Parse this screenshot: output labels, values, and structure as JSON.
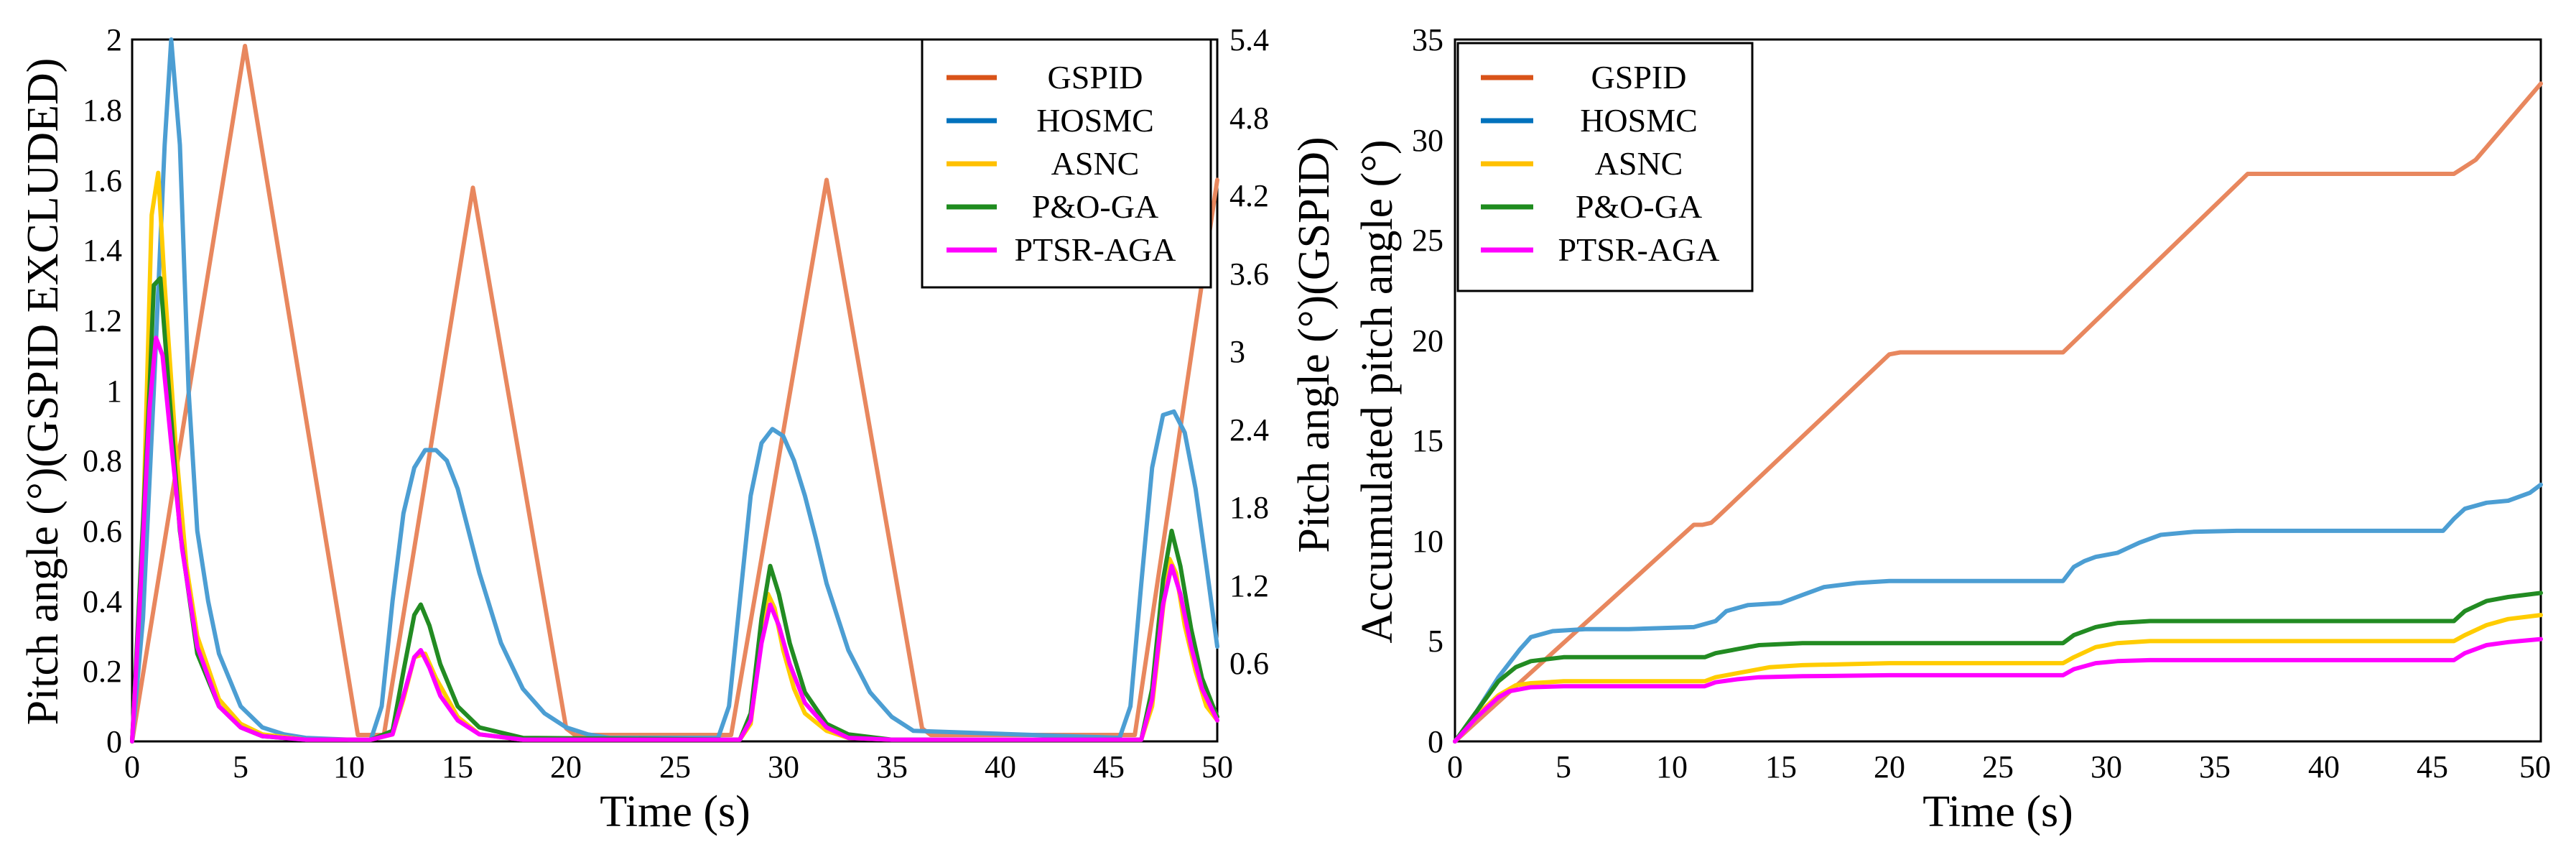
{
  "chart_data": [
    {
      "type": "line",
      "xlabel": "Time (s)",
      "ylabel": "Pitch angle (°)(GSPID EXCLUDED)",
      "ylabel_right": "Pitch angle (°)(GSPID)",
      "xlim": [
        0,
        50
      ],
      "ylim": [
        0,
        2
      ],
      "ylim_right": [
        0,
        5.4
      ],
      "xticks": [
        "0",
        "5",
        "10",
        "15",
        "20",
        "25",
        "30",
        "35",
        "40",
        "45",
        "50"
      ],
      "yticks": [
        "0",
        "0.2",
        "0.4",
        "0.6",
        "0.8",
        "1",
        "1.2",
        "1.4",
        "1.6",
        "1.8",
        "2"
      ],
      "yticks_right": [
        "0.6",
        "1.2",
        "1.8",
        "2.4",
        "3",
        "3.6",
        "4.2",
        "4.8",
        "5.4"
      ],
      "legend_position": "top-right",
      "series": [
        {
          "name": "GSPID",
          "color": "#E8875E",
          "legend_color": "#D95319",
          "axis": "right",
          "x": [
            0,
            5.2,
            10.4,
            11.6,
            15.7,
            20.0,
            20.4,
            27.3,
            27.6,
            32.0,
            36.4,
            36.8,
            45.8,
            46.2,
            50
          ],
          "y": [
            0,
            5.35,
            0.05,
            0.05,
            4.26,
            0.1,
            0.05,
            0.05,
            0.05,
            4.32,
            0.1,
            0.05,
            0.05,
            0.05,
            4.32
          ]
        },
        {
          "name": "HOSMC",
          "color": "#4C9ED3",
          "legend_color": "#0072BD",
          "axis": "left",
          "x": [
            0,
            0.5,
            1.0,
            1.5,
            1.8,
            2.2,
            2.6,
            3.0,
            3.5,
            4.0,
            5.0,
            6.0,
            7.0,
            8.0,
            10.0,
            11.0,
            11.5,
            12.0,
            12.5,
            13.0,
            13.5,
            14.0,
            14.5,
            15.0,
            15.5,
            16.0,
            17.0,
            18.0,
            19.0,
            20.0,
            21.0,
            22.0,
            27.0,
            27.5,
            28.0,
            28.5,
            29.0,
            29.5,
            30.0,
            30.5,
            31.0,
            31.5,
            32.0,
            33.0,
            34.0,
            35.0,
            36.0,
            45.5,
            46.0,
            46.5,
            47.0,
            47.5,
            48.0,
            48.5,
            49.0,
            49.5,
            50.0
          ],
          "y": [
            0,
            0.35,
            1.0,
            1.7,
            2.0,
            1.7,
            1.0,
            0.6,
            0.4,
            0.25,
            0.1,
            0.04,
            0.02,
            0.01,
            0.005,
            0.005,
            0.1,
            0.4,
            0.65,
            0.78,
            0.83,
            0.83,
            0.8,
            0.72,
            0.6,
            0.48,
            0.28,
            0.15,
            0.08,
            0.04,
            0.02,
            0.01,
            0.01,
            0.1,
            0.4,
            0.7,
            0.85,
            0.89,
            0.87,
            0.8,
            0.7,
            0.58,
            0.45,
            0.26,
            0.14,
            0.07,
            0.03,
            0.01,
            0.1,
            0.45,
            0.78,
            0.93,
            0.94,
            0.88,
            0.72,
            0.5,
            0.27
          ]
        },
        {
          "name": "ASNC",
          "color": "#FFCC00",
          "legend_color": "#FFC000",
          "axis": "left",
          "x": [
            0,
            0.5,
            0.9,
            1.2,
            1.5,
            2.0,
            2.5,
            3.0,
            4.0,
            5.0,
            6.0,
            8.0,
            11.0,
            12.0,
            12.5,
            13.0,
            13.5,
            14.0,
            15.0,
            16.0,
            18.0,
            28.0,
            28.5,
            29.0,
            29.3,
            29.6,
            30.0,
            30.5,
            31.0,
            32.0,
            33.0,
            35.0,
            46.5,
            47.0,
            47.5,
            47.8,
            48.1,
            48.5,
            49.0,
            49.5,
            50.0
          ],
          "y": [
            0,
            0.6,
            1.5,
            1.62,
            1.3,
            0.85,
            0.5,
            0.3,
            0.12,
            0.05,
            0.02,
            0.005,
            0.005,
            0.02,
            0.12,
            0.24,
            0.25,
            0.18,
            0.07,
            0.02,
            0.005,
            0.005,
            0.05,
            0.3,
            0.42,
            0.38,
            0.26,
            0.15,
            0.08,
            0.03,
            0.01,
            0.005,
            0.005,
            0.1,
            0.38,
            0.52,
            0.48,
            0.33,
            0.2,
            0.1,
            0.06
          ]
        },
        {
          "name": "P&O-GA",
          "color": "#228B22",
          "legend_color": "#1E8C1E",
          "axis": "left",
          "x": [
            0,
            0.4,
            0.8,
            1.0,
            1.3,
            1.7,
            2.2,
            3.0,
            4.0,
            5.0,
            6.0,
            8.0,
            11.0,
            12.0,
            12.5,
            13.0,
            13.3,
            13.7,
            14.2,
            15.0,
            16.0,
            18.0,
            28.0,
            28.5,
            29.0,
            29.4,
            29.8,
            30.3,
            31.0,
            32.0,
            33.0,
            35.0,
            46.5,
            47.0,
            47.5,
            47.9,
            48.3,
            48.8,
            49.3,
            50.0
          ],
          "y": [
            0,
            0.5,
            1.0,
            1.3,
            1.32,
            1.0,
            0.6,
            0.25,
            0.1,
            0.04,
            0.015,
            0.005,
            0.005,
            0.03,
            0.2,
            0.36,
            0.39,
            0.33,
            0.22,
            0.1,
            0.04,
            0.01,
            0.005,
            0.08,
            0.35,
            0.5,
            0.42,
            0.28,
            0.14,
            0.05,
            0.02,
            0.005,
            0.005,
            0.15,
            0.46,
            0.6,
            0.5,
            0.32,
            0.18,
            0.07
          ]
        },
        {
          "name": "PTSR-AGA",
          "color": "#FF00FF",
          "legend_color": "#FF00FF",
          "axis": "left",
          "x": [
            0,
            0.4,
            0.8,
            1.1,
            1.4,
            1.8,
            2.3,
            3.0,
            4.0,
            5.0,
            6.0,
            8.0,
            11.0,
            12.0,
            12.5,
            13.0,
            13.3,
            13.7,
            14.2,
            15.0,
            16.0,
            18.0,
            28.0,
            28.5,
            29.0,
            29.4,
            29.8,
            30.3,
            31.0,
            32.0,
            33.0,
            35.0,
            46.5,
            47.0,
            47.5,
            47.9,
            48.3,
            48.8,
            49.3,
            50.0
          ],
          "y": [
            0,
            0.45,
            0.95,
            1.15,
            1.1,
            0.85,
            0.55,
            0.27,
            0.1,
            0.04,
            0.015,
            0.005,
            0.005,
            0.02,
            0.13,
            0.24,
            0.26,
            0.21,
            0.13,
            0.06,
            0.02,
            0.005,
            0.005,
            0.06,
            0.28,
            0.39,
            0.33,
            0.22,
            0.11,
            0.04,
            0.01,
            0.005,
            0.005,
            0.12,
            0.39,
            0.5,
            0.42,
            0.27,
            0.15,
            0.06
          ]
        }
      ]
    },
    {
      "type": "line",
      "xlabel": "Time (s)",
      "ylabel": "Accumulated pitch angle (°)",
      "xlim": [
        0,
        50
      ],
      "ylim": [
        0,
        35
      ],
      "xticks": [
        "0",
        "5",
        "10",
        "15",
        "20",
        "25",
        "30",
        "35",
        "40",
        "45",
        "50"
      ],
      "yticks": [
        "0",
        "5",
        "10",
        "15",
        "20",
        "25",
        "30",
        "35"
      ],
      "legend_position": "top-left",
      "series": [
        {
          "name": "GSPID",
          "color": "#E8875E",
          "legend_color": "#D95319",
          "x": [
            0,
            11.0,
            11.4,
            11.8,
            12.0,
            20.0,
            20.5,
            28.0,
            36.5,
            37.0,
            46.0,
            47.0,
            50.0
          ],
          "y": [
            0,
            10.8,
            10.8,
            10.9,
            11.1,
            19.3,
            19.4,
            19.4,
            28.3,
            28.3,
            28.3,
            29.0,
            32.8
          ]
        },
        {
          "name": "HOSMC",
          "color": "#4C9ED3",
          "legend_color": "#0072BD",
          "x": [
            0,
            1.0,
            2.0,
            3.0,
            3.5,
            4.5,
            6.0,
            8.0,
            11.0,
            12.0,
            12.5,
            13.5,
            15.0,
            16.0,
            17.0,
            18.5,
            20.0,
            28.0,
            28.5,
            29.0,
            29.5,
            30.5,
            31.5,
            32.5,
            34.0,
            36.0,
            40.0,
            45.5,
            46.0,
            46.5,
            47.5,
            48.5,
            49.5,
            50.0
          ],
          "y": [
            0,
            1.5,
            3.2,
            4.6,
            5.2,
            5.5,
            5.6,
            5.6,
            5.7,
            6.0,
            6.5,
            6.8,
            6.9,
            7.3,
            7.7,
            7.9,
            8.0,
            8.0,
            8.7,
            9.0,
            9.2,
            9.4,
            9.9,
            10.3,
            10.45,
            10.5,
            10.5,
            10.5,
            11.1,
            11.6,
            11.9,
            12.0,
            12.4,
            12.8
          ]
        },
        {
          "name": "ASNC",
          "color": "#FFCC00",
          "legend_color": "#FFC000",
          "x": [
            0,
            1.0,
            2.0,
            2.8,
            3.5,
            5.0,
            10.0,
            11.5,
            12.0,
            13.5,
            14.5,
            16.0,
            20.0,
            28.0,
            28.5,
            29.5,
            30.5,
            32.0,
            36.0,
            46.0,
            46.5,
            47.5,
            48.5,
            50.0
          ],
          "y": [
            0,
            1.3,
            2.3,
            2.8,
            2.9,
            3.0,
            3.0,
            3.0,
            3.2,
            3.5,
            3.7,
            3.8,
            3.9,
            3.9,
            4.2,
            4.7,
            4.9,
            5.0,
            5.0,
            5.0,
            5.3,
            5.8,
            6.1,
            6.3
          ]
        },
        {
          "name": "P&O-GA",
          "color": "#228B22",
          "legend_color": "#1E8C1E",
          "x": [
            0,
            1.0,
            2.0,
            2.8,
            3.5,
            5.0,
            10.0,
            11.5,
            12.0,
            13.0,
            14.0,
            16.0,
            20.0,
            28.0,
            28.5,
            29.5,
            30.5,
            32.0,
            36.0,
            46.0,
            46.5,
            47.5,
            48.5,
            50.0
          ],
          "y": [
            0,
            1.5,
            3.0,
            3.7,
            4.0,
            4.2,
            4.2,
            4.2,
            4.4,
            4.6,
            4.8,
            4.9,
            4.9,
            4.9,
            5.3,
            5.7,
            5.9,
            6.0,
            6.0,
            6.0,
            6.5,
            7.0,
            7.2,
            7.4
          ]
        },
        {
          "name": "PTSR-AGA",
          "color": "#FF00FF",
          "legend_color": "#FF00FF",
          "x": [
            0,
            1.0,
            2.0,
            2.5,
            3.5,
            5.0,
            10.0,
            11.5,
            12.0,
            13.0,
            14.0,
            16.0,
            20.0,
            28.0,
            28.5,
            29.5,
            30.5,
            32.0,
            36.0,
            46.0,
            46.5,
            47.5,
            48.5,
            50.0
          ],
          "y": [
            0,
            1.2,
            2.2,
            2.5,
            2.7,
            2.75,
            2.75,
            2.75,
            2.95,
            3.1,
            3.2,
            3.25,
            3.3,
            3.3,
            3.6,
            3.9,
            4.0,
            4.05,
            4.05,
            4.05,
            4.4,
            4.8,
            4.95,
            5.1
          ]
        }
      ]
    }
  ]
}
